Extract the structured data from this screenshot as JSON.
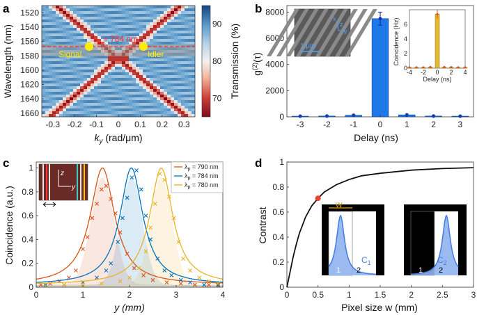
{
  "panels": {
    "a": "a",
    "b": "b",
    "c": "c",
    "d": "d"
  },
  "panel_a": {
    "ylabel": "Wavelength (nm)",
    "xlabel_k": "k",
    "xlabel_sub": "y",
    "xlabel_unit": " (rad/μm)",
    "yticks": [
      "1520",
      "1540",
      "1560",
      "1580",
      "1600",
      "1620",
      "1640",
      "1660"
    ],
    "xticks": [
      "-0.3",
      "-0.2",
      "-0.1",
      "0",
      "0.1",
      "0.2",
      "0.3"
    ],
    "pump_label": "λ",
    "pump_sub": "p",
    "pump_value": " = 784 nm",
    "signal_label": "Signal",
    "idler_label": "Idler",
    "colorbar_label": "Transmission (%)",
    "colorbar_ticks": [
      "90",
      "80",
      "70"
    ],
    "colors": {
      "signal": "#ffee00",
      "pump_line": "#ff2a2a",
      "low": "#8b0d1e",
      "high": "#1f5fa3"
    }
  },
  "panel_b": {
    "ylabel": "g(2)(τ)",
    "ylabel_main": "g",
    "ylabel_sup": "(2)",
    "ylabel_tau": "(τ)",
    "xlabel": "Delay (ns)",
    "inset_scale": "1 μm",
    "inset_axes": [
      "x",
      "z",
      "y"
    ],
    "inset2_ylabel": "Coincidence (Hz)",
    "inset2_xlabel": "Delay (ns)",
    "inset2_xticks": [
      "-4",
      "-2",
      "0",
      "2",
      "4"
    ],
    "inset2_yticks": [
      "0",
      "2",
      "4",
      "6"
    ]
  },
  "panel_c": {
    "ylabel": "Coincidence (a.u.)",
    "xlabel": "y (mm)",
    "legend": [
      {
        "lambda": "λ",
        "sub": "p",
        "text": " = 790 nm",
        "color": "#d95319"
      },
      {
        "lambda": "λ",
        "sub": "p",
        "text": " = 784 nm",
        "color": "#0072bd"
      },
      {
        "lambda": "λ",
        "sub": "p",
        "text": " = 780 nm",
        "color": "#edb120"
      }
    ],
    "inset_axes": [
      "z",
      "y"
    ]
  },
  "panel_d": {
    "ylabel": "Contrast",
    "xlabel": "Pixel size w (mm)",
    "inset_w": "W",
    "inset1_pixels": [
      "1",
      "2"
    ],
    "inset1_c": "C",
    "inset1_csub": "1",
    "inset2_pixels": [
      "1",
      "2"
    ],
    "inset2_c": "C",
    "inset2_csub": "2"
  },
  "chart_data": [
    {
      "id": "a",
      "type": "heatmap",
      "title": "",
      "xlabel": "ky (rad/μm)",
      "ylabel": "Wavelength (nm)",
      "xlim": [
        -0.35,
        0.35
      ],
      "ylim": [
        1510,
        1665
      ],
      "colorbar": {
        "label": "Transmission (%)",
        "range": [
          65,
          95
        ]
      },
      "pump_wavelength_nm": 1568,
      "signal_point": [
        -0.12,
        1568
      ],
      "idler_point": [
        0.12,
        1568
      ],
      "dispersion_apex_nm": 1584
    },
    {
      "id": "b",
      "type": "bar",
      "categories": [
        "-3",
        "-2",
        "-1",
        "0",
        "1",
        "2",
        "3"
      ],
      "values": [
        50,
        60,
        120,
        7500,
        150,
        60,
        50
      ],
      "errors": [
        0,
        0,
        0,
        500,
        0,
        0,
        0
      ],
      "xlabel": "Delay (ns)",
      "ylabel": "g(2)(τ)",
      "ylim": [
        0,
        8500
      ],
      "yticks": [
        0,
        2000,
        4000,
        6000,
        8000
      ],
      "inset": {
        "type": "bar",
        "x": [
          -4,
          -3,
          -2,
          -1,
          0,
          1,
          2,
          3,
          4
        ],
        "values": [
          0.1,
          0.1,
          0.1,
          0.15,
          7.4,
          0.15,
          0.12,
          0.1,
          0.1
        ],
        "xlim": [
          -4,
          4
        ],
        "ylim": [
          0,
          8
        ]
      }
    },
    {
      "id": "c",
      "type": "line",
      "xlabel": "y (mm)",
      "ylabel": "Coincidence (a.u.)",
      "xlim": [
        0,
        4
      ],
      "ylim": [
        0,
        1.05
      ],
      "xticks": [
        0,
        1,
        2,
        3,
        4
      ],
      "yticks": [
        0,
        0.2,
        0.4,
        0.6,
        0.8,
        1
      ],
      "series": [
        {
          "name": "λp = 790 nm",
          "center": 1.42,
          "width": 0.32,
          "color": "#d95319",
          "x": [
            0.1,
            0.3,
            0.5,
            0.7,
            0.85,
            1.0,
            1.1,
            1.2,
            1.3,
            1.4,
            1.5,
            1.6,
            1.7,
            1.8,
            1.95,
            2.1,
            2.3,
            2.5,
            2.8,
            3.1,
            3.4,
            3.7,
            3.9
          ],
          "y": [
            0.02,
            0.03,
            0.05,
            0.08,
            0.14,
            0.32,
            0.42,
            0.58,
            0.7,
            0.82,
            0.85,
            0.74,
            0.62,
            0.46,
            0.28,
            0.16,
            0.1,
            0.06,
            0.04,
            0.03,
            0.02,
            0.02,
            0.01
          ]
        },
        {
          "name": "λp = 784 nm",
          "center": 2.04,
          "width": 0.3,
          "color": "#0072bd",
          "x": [
            0.2,
            0.6,
            1.0,
            1.3,
            1.5,
            1.6,
            1.75,
            1.85,
            1.95,
            2.05,
            2.15,
            2.25,
            2.35,
            2.45,
            2.6,
            2.75,
            2.9,
            3.1,
            3.3,
            3.6,
            3.9
          ],
          "y": [
            0.02,
            0.02,
            0.04,
            0.08,
            0.14,
            0.2,
            0.38,
            0.58,
            0.75,
            0.92,
            0.98,
            0.82,
            0.6,
            0.4,
            0.24,
            0.14,
            0.1,
            0.06,
            0.04,
            0.02,
            0.02
          ]
        },
        {
          "name": "λp = 780 nm",
          "center": 2.68,
          "width": 0.3,
          "color": "#edb120",
          "x": [
            0.2,
            0.6,
            1.0,
            1.4,
            1.8,
            2.0,
            2.2,
            2.35,
            2.45,
            2.55,
            2.65,
            2.75,
            2.85,
            2.95,
            3.05,
            3.15,
            3.3,
            3.5,
            3.7,
            3.9
          ],
          "y": [
            0.01,
            0.02,
            0.02,
            0.03,
            0.05,
            0.08,
            0.16,
            0.3,
            0.5,
            0.7,
            0.95,
            0.9,
            0.76,
            0.58,
            0.38,
            0.24,
            0.14,
            0.08,
            0.05,
            0.03
          ]
        }
      ]
    },
    {
      "id": "d",
      "type": "line",
      "xlabel": "Pixel size w (mm)",
      "ylabel": "Contrast",
      "xlim": [
        0,
        3
      ],
      "ylim": [
        0,
        1
      ],
      "xticks": [
        0,
        0.5,
        1,
        1.5,
        2,
        2.5,
        3
      ],
      "yticks": [
        0,
        0.2,
        0.4,
        0.6,
        0.8,
        1
      ],
      "series": [
        {
          "name": "contrast",
          "x": [
            0,
            0.05,
            0.1,
            0.15,
            0.2,
            0.3,
            0.4,
            0.5,
            0.6,
            0.8,
            1.0,
            1.2,
            1.5,
            2.0,
            2.5,
            3.0
          ],
          "y": [
            0,
            0.12,
            0.24,
            0.34,
            0.43,
            0.56,
            0.65,
            0.71,
            0.76,
            0.82,
            0.86,
            0.89,
            0.91,
            0.935,
            0.948,
            0.955
          ]
        }
      ],
      "highlight_point": [
        0.5,
        0.71
      ]
    }
  ]
}
